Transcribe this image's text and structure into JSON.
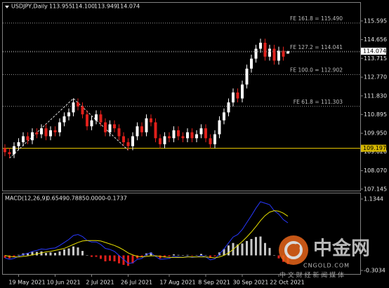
{
  "chart_data": [
    {
      "type": "candlestick",
      "title": "USDJPY,Daily",
      "quote": [
        "113.955",
        "114.100",
        "113.949",
        "114.074"
      ],
      "x": [
        null,
        null,
        null,
        "19 May 2021",
        null,
        null,
        null,
        null,
        null,
        null,
        null,
        "10 Jun 2021",
        null,
        null,
        null,
        null,
        null,
        null,
        null,
        "2 Jul 2021",
        null,
        null,
        null,
        null,
        null,
        null,
        null,
        "26 Jul 2021",
        null,
        null,
        null,
        null,
        null,
        null,
        null,
        null,
        "17 Aug 2021",
        null,
        null,
        null,
        null,
        null,
        null,
        null,
        "8 Sep 2021",
        null,
        null,
        null,
        null,
        null,
        null,
        null,
        "30 Sep 2021",
        null,
        null,
        null,
        null,
        null,
        null,
        null,
        "22 Oct 2021",
        null,
        null
      ],
      "candles": {
        "open": [
          109.2,
          109.0,
          108.9,
          109.3,
          109.5,
          109.8,
          109.6,
          110.0,
          109.9,
          110.2,
          109.8,
          110.1,
          110.0,
          110.5,
          110.8,
          111.0,
          111.5,
          111.3,
          110.9,
          110.3,
          110.6,
          110.9,
          110.5,
          110.0,
          110.4,
          110.2,
          109.8,
          109.5,
          109.3,
          109.8,
          110.3,
          110.0,
          110.7,
          110.5,
          109.7,
          109.4,
          109.8,
          109.7,
          110.1,
          109.8,
          109.7,
          110.0,
          109.7,
          109.9,
          110.2,
          109.7,
          109.4,
          109.9,
          110.6,
          111.0,
          111.5,
          112.0,
          111.7,
          112.4,
          113.2,
          113.7,
          114.2,
          114.5,
          113.8,
          114.2,
          113.6,
          114.1,
          113.955
        ],
        "high": [
          109.4,
          109.2,
          109.5,
          109.7,
          110.0,
          110.0,
          110.2,
          110.2,
          110.4,
          110.4,
          110.3,
          110.3,
          110.7,
          111.0,
          111.2,
          111.7,
          111.7,
          111.5,
          111.1,
          110.8,
          111.1,
          111.1,
          110.7,
          110.6,
          110.6,
          110.4,
          110.0,
          109.7,
          110.0,
          110.5,
          110.5,
          110.9,
          110.9,
          110.7,
          109.9,
          110.0,
          110.0,
          110.3,
          110.3,
          110.0,
          110.2,
          110.2,
          110.1,
          110.4,
          110.4,
          109.9,
          110.1,
          110.8,
          111.2,
          111.7,
          112.2,
          112.2,
          112.6,
          113.4,
          113.9,
          114.4,
          114.7,
          114.7,
          114.4,
          114.4,
          114.3,
          114.3,
          114.1
        ],
        "low": [
          108.8,
          108.7,
          108.7,
          109.1,
          109.3,
          109.4,
          109.4,
          109.7,
          109.7,
          109.6,
          109.6,
          109.8,
          109.8,
          110.3,
          110.6,
          110.8,
          111.1,
          110.7,
          110.1,
          110.1,
          110.4,
          110.3,
          109.8,
          109.8,
          110.0,
          109.6,
          109.3,
          109.1,
          109.1,
          109.6,
          109.8,
          109.8,
          110.3,
          109.5,
          109.2,
          109.2,
          109.5,
          109.5,
          109.6,
          109.5,
          109.5,
          109.5,
          109.5,
          109.7,
          109.5,
          109.2,
          109.2,
          109.7,
          110.4,
          110.8,
          111.3,
          111.5,
          111.5,
          112.2,
          113.0,
          113.5,
          114.0,
          113.6,
          113.6,
          113.4,
          113.4,
          113.6,
          113.949
        ],
        "close": [
          109.0,
          108.9,
          109.3,
          109.5,
          109.8,
          109.6,
          110.0,
          109.9,
          110.2,
          109.8,
          110.1,
          110.0,
          110.5,
          110.8,
          111.0,
          111.5,
          111.3,
          110.9,
          110.3,
          110.6,
          110.9,
          110.5,
          110.0,
          110.4,
          110.2,
          109.8,
          109.5,
          109.3,
          109.8,
          110.3,
          110.0,
          110.7,
          110.5,
          109.7,
          109.4,
          109.8,
          109.7,
          110.1,
          109.8,
          109.7,
          110.0,
          109.7,
          109.9,
          110.2,
          109.7,
          109.4,
          109.9,
          110.6,
          111.0,
          111.5,
          112.0,
          111.7,
          112.4,
          113.2,
          113.7,
          114.2,
          114.5,
          113.8,
          114.2,
          113.6,
          114.1,
          113.8,
          114.074
        ]
      },
      "up_color": "#ffffff",
      "down_color": "#e0201b",
      "ylim": [
        107.069,
        116.507
      ],
      "yticks": [
        115.595,
        114.656,
        113.715,
        {
          "value": 112.77,
          "label": "112.770"
        },
        {
          "value": 111.83,
          "label": "111.830"
        },
        110.895,
        {
          "value": 109.95,
          "label": "109.950"
        },
        {
          "value": 109.02,
          "label": "109.020"
        },
        {
          "value": 108.07,
          "label": "108.070"
        },
        107.145
      ],
      "levels": [
        {
          "label": "FE 161.8 = 115.490",
          "value": 115.49
        },
        {
          "label": "FE 127.2 = 114.041",
          "value": 114.041
        },
        {
          "label": "FE 100.0 = 112.902",
          "value": 112.902
        },
        {
          "label": "FE 61.8 = 111.303",
          "value": 111.303
        }
      ],
      "hline": {
        "value": 109.197,
        "color": "#d4b600"
      },
      "last_price": 114.074
    },
    {
      "type": "macd",
      "title": "MACD(12,26,9)",
      "readout": [
        "0.6549",
        "0.7885",
        "0.0000",
        "-0.1737"
      ],
      "ylim": [
        -0.3034,
        1.1344
      ],
      "yticks": [
        1.1344,
        -0.3034
      ],
      "bars": {
        "up_color": "#c8c8c8",
        "down_color": "#e0201b",
        "values": [
          -0.05,
          -0.06,
          -0.03,
          0.01,
          0.04,
          0.05,
          0.07,
          0.07,
          0.08,
          0.05,
          0.06,
          0.05,
          0.08,
          0.12,
          0.14,
          0.18,
          0.16,
          0.09,
          0.0,
          -0.03,
          -0.03,
          -0.07,
          -0.12,
          -0.11,
          -0.12,
          -0.16,
          -0.19,
          -0.21,
          -0.16,
          -0.06,
          -0.03,
          0.04,
          0.06,
          -0.01,
          -0.06,
          -0.04,
          -0.02,
          0.02,
          0.01,
          0.0,
          0.01,
          -0.01,
          0.0,
          0.03,
          0.0,
          -0.05,
          -0.02,
          0.06,
          0.13,
          0.2,
          0.25,
          0.22,
          0.24,
          0.29,
          0.33,
          0.37,
          0.38,
          0.25,
          0.15,
          0.0,
          -0.06,
          -0.13,
          -0.1737
        ]
      },
      "series": [
        {
          "color": "#2838ff",
          "values": [
            -0.05,
            -0.08,
            -0.06,
            -0.02,
            0.02,
            0.04,
            0.08,
            0.1,
            0.13,
            0.12,
            0.14,
            0.15,
            0.2,
            0.26,
            0.32,
            0.4,
            0.42,
            0.38,
            0.3,
            0.27,
            0.27,
            0.22,
            0.14,
            0.12,
            0.08,
            0.0,
            -0.08,
            -0.16,
            -0.15,
            -0.08,
            -0.06,
            0.02,
            0.05,
            -0.02,
            -0.08,
            -0.07,
            -0.06,
            -0.02,
            -0.03,
            -0.04,
            -0.02,
            -0.04,
            -0.03,
            0.0,
            -0.03,
            -0.09,
            -0.07,
            0.03,
            0.13,
            0.25,
            0.37,
            0.42,
            0.52,
            0.66,
            0.8,
            0.95,
            1.08,
            1.05,
            1.02,
            0.9,
            0.83,
            0.72,
            0.6549
          ]
        },
        {
          "color": "#e8e000",
          "values": [
            0.0,
            -0.02,
            -0.03,
            -0.03,
            -0.02,
            -0.01,
            0.01,
            0.03,
            0.05,
            0.07,
            0.08,
            0.1,
            0.12,
            0.14,
            0.18,
            0.22,
            0.26,
            0.29,
            0.3,
            0.3,
            0.3,
            0.29,
            0.26,
            0.23,
            0.2,
            0.16,
            0.11,
            0.05,
            0.01,
            -0.02,
            -0.03,
            -0.02,
            -0.01,
            -0.01,
            -0.02,
            -0.03,
            -0.04,
            -0.04,
            -0.04,
            -0.04,
            -0.03,
            -0.03,
            -0.03,
            -0.03,
            -0.03,
            -0.04,
            -0.05,
            -0.03,
            0.0,
            0.05,
            0.12,
            0.2,
            0.28,
            0.37,
            0.47,
            0.58,
            0.7,
            0.8,
            0.87,
            0.9,
            0.89,
            0.85,
            0.7885
          ]
        }
      ]
    }
  ],
  "watermark": {
    "brand": "中金网",
    "site": "CNGOLD.COM",
    "tagline": "中 文 财 经 新 闻 媒 体"
  }
}
